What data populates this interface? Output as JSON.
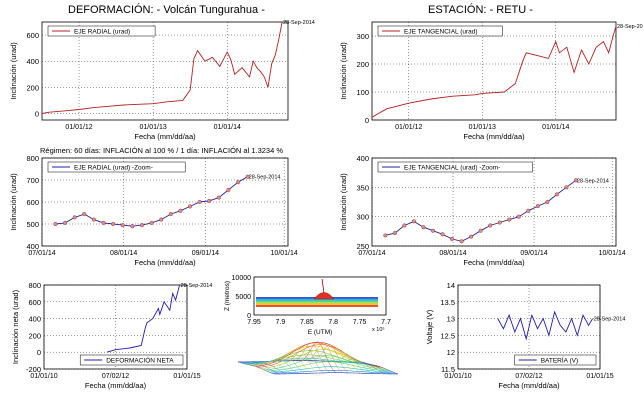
{
  "header": {
    "title_left": "DEFORMACIÓN: - Volcán Tungurahua -",
    "title_right": "ESTACIÓN: - RETU -",
    "regime_text": "Régimen: 60 días: INFLACIÓN al 100 % / 1 día: INFLACIÓN al 1.3234 %"
  },
  "chart_data": [
    {
      "id": "radial",
      "type": "line",
      "legend": "EJE RADIAL (urad)",
      "xlabel": "Fecha (mm/dd/aa)",
      "ylabel": "Inclinación (urad)",
      "xlim": [
        2011.5,
        2014.82
      ],
      "ylim": [
        -50,
        700
      ],
      "yticks": [
        0,
        200,
        400,
        600
      ],
      "xticks": [
        {
          "v": 2012.0,
          "label": "01/01/12"
        },
        {
          "v": 2013.0,
          "label": "01/01/13"
        },
        {
          "v": 2014.0,
          "label": "01/01/14"
        }
      ],
      "end_label": "28-Sep-2014",
      "color": "#b22222",
      "series": [
        {
          "x": [
            2011.5,
            2011.6,
            2011.8,
            2012.0,
            2012.2,
            2012.4,
            2012.6,
            2012.8,
            2013.0,
            2013.2,
            2013.4,
            2013.5,
            2013.55,
            2013.6,
            2013.7,
            2013.8,
            2013.9,
            2014.0,
            2014.05,
            2014.1,
            2014.2,
            2014.3,
            2014.35,
            2014.4,
            2014.45,
            2014.5,
            2014.55,
            2014.6,
            2014.65,
            2014.7,
            2014.74
          ],
          "y": [
            0,
            10,
            20,
            30,
            45,
            55,
            65,
            70,
            75,
            90,
            100,
            180,
            420,
            480,
            400,
            430,
            360,
            470,
            410,
            300,
            350,
            280,
            400,
            350,
            320,
            280,
            200,
            380,
            450,
            580,
            700
          ]
        }
      ]
    },
    {
      "id": "tangencial",
      "type": "line",
      "legend": "EJE TANGENCIAL (urad)",
      "xlabel": "Fecha (mm/dd/aa)",
      "ylabel": "Inclinación (urad)",
      "xlim": [
        2011.5,
        2014.82
      ],
      "ylim": [
        0,
        350
      ],
      "yticks": [
        0,
        100,
        200,
        300
      ],
      "xticks": [
        {
          "v": 2012.0,
          "label": "01/01/12"
        },
        {
          "v": 2013.0,
          "label": "01/01/13"
        },
        {
          "v": 2014.0,
          "label": "01/01/14"
        }
      ],
      "end_label": "28-Sep-20",
      "color": "#b22222",
      "series": [
        {
          "x": [
            2011.5,
            2011.7,
            2012.0,
            2012.3,
            2012.6,
            2012.9,
            2013.0,
            2013.3,
            2013.45,
            2013.55,
            2013.6,
            2013.75,
            2013.9,
            2014.0,
            2014.05,
            2014.15,
            2014.25,
            2014.35,
            2014.45,
            2014.55,
            2014.65,
            2014.72,
            2014.78,
            2014.82
          ],
          "y": [
            10,
            40,
            60,
            75,
            85,
            90,
            95,
            100,
            130,
            210,
            240,
            230,
            220,
            280,
            240,
            260,
            170,
            250,
            200,
            260,
            280,
            240,
            300,
            335
          ]
        }
      ]
    },
    {
      "id": "radial_zoom",
      "type": "line",
      "legend": "EJE RADIAL (urad) -Zoom-",
      "xlabel": "Fecha (mm/dd/aa)",
      "ylabel": "Inclinación (urad)",
      "xlim": [
        2014.496,
        2014.752
      ],
      "ylim": [
        400,
        800
      ],
      "yticks": [
        400,
        500,
        600,
        700,
        800
      ],
      "xticks": [
        {
          "v": 2014.496,
          "label": "07/01/14"
        },
        {
          "v": 2014.581,
          "label": "08/01/14"
        },
        {
          "v": 2014.666,
          "label": "09/01/14"
        },
        {
          "v": 2014.748,
          "label": "10/01/14"
        }
      ],
      "end_label": "28-Sep-2014",
      "color": "#1f1fa8",
      "series": [
        {
          "x": [
            2014.51,
            2014.52,
            2014.53,
            2014.54,
            2014.55,
            2014.56,
            2014.57,
            2014.58,
            2014.59,
            2014.6,
            2014.61,
            2014.62,
            2014.63,
            2014.64,
            2014.65,
            2014.66,
            2014.67,
            2014.68,
            2014.69,
            2014.7,
            2014.71
          ],
          "y": [
            500,
            505,
            530,
            545,
            520,
            505,
            500,
            495,
            490,
            495,
            505,
            520,
            545,
            560,
            580,
            600,
            605,
            620,
            655,
            690,
            715
          ]
        }
      ]
    },
    {
      "id": "tangencial_zoom",
      "type": "line",
      "legend": "EJE TANGENCIAL (urad) -Zoom-",
      "xlabel": "Fecha (mm/dd/aa)",
      "ylabel": "Inclinación (urad)",
      "xlim": [
        2014.496,
        2014.752
      ],
      "ylim": [
        250,
        400
      ],
      "yticks": [
        250,
        300,
        350,
        400
      ],
      "xticks": [
        {
          "v": 2014.496,
          "label": "07/01/14"
        },
        {
          "v": 2014.581,
          "label": "08/01/14"
        },
        {
          "v": 2014.666,
          "label": "09/01/14"
        },
        {
          "v": 2014.748,
          "label": "10/01/14"
        }
      ],
      "end_label": "28-Sep-2014",
      "color": "#1f1fa8",
      "series": [
        {
          "x": [
            2014.51,
            2014.52,
            2014.53,
            2014.54,
            2014.55,
            2014.56,
            2014.57,
            2014.58,
            2014.59,
            2014.6,
            2014.61,
            2014.62,
            2014.63,
            2014.64,
            2014.65,
            2014.66,
            2014.67,
            2014.68,
            2014.69,
            2014.7,
            2014.71
          ],
          "y": [
            268,
            272,
            285,
            292,
            282,
            276,
            270,
            262,
            258,
            266,
            276,
            285,
            290,
            295,
            300,
            310,
            318,
            325,
            338,
            350,
            362
          ]
        }
      ]
    },
    {
      "id": "neta",
      "type": "line",
      "legend": "DEFORMACIÓN NETA",
      "xlabel": "Fecha (mm/dd/aa)",
      "ylabel": "Inclinación neta (urad)",
      "xlim": [
        2010.0,
        2015.0
      ],
      "ylim": [
        -200,
        800
      ],
      "yticks": [
        -200,
        0,
        200,
        400,
        600,
        800
      ],
      "xticks": [
        {
          "v": 2010.0,
          "label": "01/01/10"
        },
        {
          "v": 2012.5,
          "label": "07/02/12"
        },
        {
          "v": 2015.0,
          "label": "01/01/15"
        }
      ],
      "end_label": "28-Sep-2014",
      "color": "#1f1fa8",
      "series": [
        {
          "x": [
            2012.2,
            2012.5,
            2013.0,
            2013.4,
            2013.55,
            2013.6,
            2013.8,
            2014.0,
            2014.05,
            2014.2,
            2014.4,
            2014.5,
            2014.6,
            2014.74
          ],
          "y": [
            0,
            30,
            50,
            80,
            300,
            350,
            400,
            520,
            450,
            600,
            500,
            700,
            620,
            800
          ]
        }
      ]
    },
    {
      "id": "model",
      "type": "area",
      "ylabel": "Z (metros)",
      "xlabel": "E (UTM)",
      "xlim": [
        7.95,
        7.7
      ],
      "ylim": [
        0,
        10000
      ],
      "xticks": [
        {
          "v": 7.95,
          "label": "7.95"
        },
        {
          "v": 7.9,
          "label": "7.9"
        },
        {
          "v": 7.85,
          "label": "7.85"
        },
        {
          "v": 7.8,
          "label": "7.8"
        },
        {
          "v": 7.75,
          "label": "7.75"
        },
        {
          "v": 7.7,
          "label": "7.7"
        }
      ],
      "yticks": [
        0,
        5000,
        10000
      ],
      "exponent_label": "x 10⁵"
    },
    {
      "id": "bateria",
      "type": "line",
      "legend": "BATERÍA (V)",
      "xlabel": "Fecha (mm/dd/aa)",
      "ylabel": "Voltaje (V)",
      "xlim": [
        2010.0,
        2015.0
      ],
      "ylim": [
        11.5,
        14
      ],
      "yticks": [
        11.5,
        12,
        12.5,
        13,
        13.5,
        14
      ],
      "xticks": [
        {
          "v": 2010.0,
          "label": "01/01/10"
        },
        {
          "v": 2012.5,
          "label": "07/02/12"
        },
        {
          "v": 2015.0,
          "label": "01/01/15"
        }
      ],
      "end_label": "28-Sep-2014",
      "color": "#1f1fa8",
      "series": [
        {
          "x": [
            2011.4,
            2011.6,
            2011.8,
            2012.0,
            2012.2,
            2012.4,
            2012.6,
            2012.8,
            2013.0,
            2013.2,
            2013.4,
            2013.6,
            2013.8,
            2014.0,
            2014.2,
            2014.4,
            2014.6,
            2014.74
          ],
          "y": [
            13.0,
            12.7,
            13.1,
            12.6,
            13.0,
            12.4,
            13.1,
            12.7,
            13.0,
            12.5,
            13.2,
            12.8,
            12.6,
            13.0,
            12.5,
            13.1,
            12.8,
            13.0
          ]
        }
      ]
    }
  ]
}
